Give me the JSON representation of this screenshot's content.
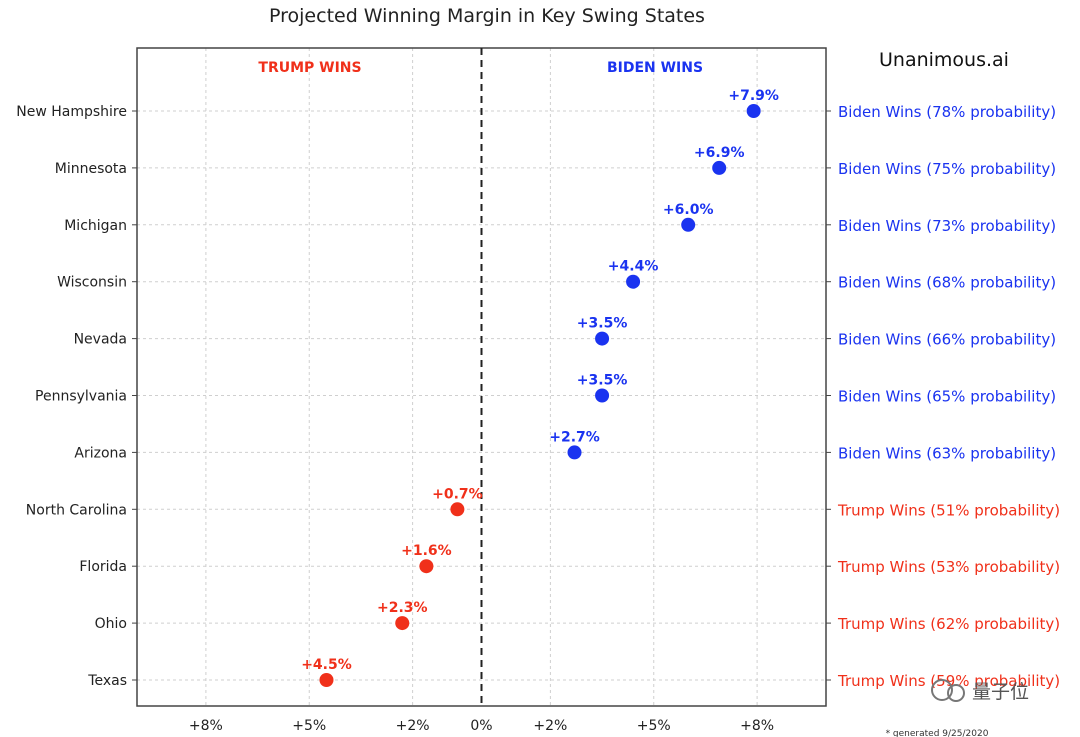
{
  "chart_data": {
    "type": "scatter",
    "title": "Projected Winning Margin in Key Swing States",
    "brand": "Unanimous.ai",
    "left_header": "TRUMP WINS",
    "right_header": "BIDEN WINS",
    "xlabel": "",
    "ylabel": "",
    "xlim": [
      -10,
      10
    ],
    "x_ticks": [
      -8,
      -5,
      -2,
      0,
      2,
      5,
      8
    ],
    "x_tick_labels": [
      "+8%",
      "+5%",
      "+2%",
      "0%",
      "+2%",
      "+5%",
      "+8%"
    ],
    "grid": true,
    "center_line": 0,
    "colors": {
      "biden": "#1a33f0",
      "trump": "#f0301a"
    },
    "points": [
      {
        "state": "New Hampshire",
        "x": 7.9,
        "label": "+7.9%",
        "winner": "biden",
        "prob": "Biden Wins (78% probability)"
      },
      {
        "state": "Minnesota",
        "x": 6.9,
        "label": "+6.9%",
        "winner": "biden",
        "prob": "Biden Wins (75% probability)"
      },
      {
        "state": "Michigan",
        "x": 6.0,
        "label": "+6.0%",
        "winner": "biden",
        "prob": "Biden Wins (73% probability)"
      },
      {
        "state": "Wisconsin",
        "x": 4.4,
        "label": "+4.4%",
        "winner": "biden",
        "prob": "Biden Wins (68% probability)"
      },
      {
        "state": "Nevada",
        "x": 3.5,
        "label": "+3.5%",
        "winner": "biden",
        "prob": "Biden Wins (66% probability)"
      },
      {
        "state": "Pennsylvania",
        "x": 3.5,
        "label": "+3.5%",
        "winner": "biden",
        "prob": "Biden Wins (65% probability)"
      },
      {
        "state": "Arizona",
        "x": 2.7,
        "label": "+2.7%",
        "winner": "biden",
        "prob": "Biden Wins (63% probability)"
      },
      {
        "state": "North Carolina",
        "x": -0.7,
        "label": "+0.7%",
        "winner": "trump",
        "prob": "Trump Wins (51% probability)"
      },
      {
        "state": "Florida",
        "x": -1.6,
        "label": "+1.6%",
        "winner": "trump",
        "prob": "Trump Wins (53% probability)"
      },
      {
        "state": "Ohio",
        "x": -2.3,
        "label": "+2.3%",
        "winner": "trump",
        "prob": "Trump Wins (62% probability)"
      },
      {
        "state": "Texas",
        "x": -4.5,
        "label": "+4.5%",
        "winner": "trump",
        "prob": "Trump Wins (59% probability)"
      }
    ],
    "footnote": "* generated 9/25/2020"
  },
  "watermark": "量子位"
}
